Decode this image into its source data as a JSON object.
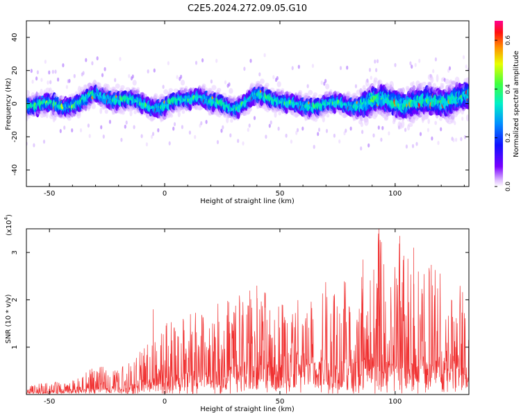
{
  "title": "C2E5.2024.272.09.05.G10",
  "colors": {
    "snr_line": "#f03030",
    "axis": "#000000"
  },
  "chart_data": [
    {
      "type": "heatmap",
      "xlabel": "Height of straight line (km)",
      "ylabel": "Frequency (Hz)",
      "xlim": [
        -60,
        132
      ],
      "ylim": [
        -50,
        50
      ],
      "xticks": [
        -50,
        0,
        50,
        100
      ],
      "yticks": [
        -40,
        -20,
        0,
        20,
        40
      ],
      "colorbar": {
        "label": "Normalized spectral amplitude",
        "range": [
          0,
          0.68
        ],
        "ticks": [
          0.0,
          0.2,
          0.4,
          0.6
        ],
        "colormap": "rainbow (purple-blue-cyan-green-yellow-red-magenta)"
      },
      "ridge": {
        "description": "strong signal band centred near 0 Hz, width roughly ±10 Hz, broader scatter above 85 km",
        "center_hz": [
          [
            -55,
            0
          ],
          [
            -45,
            -2
          ],
          [
            -35,
            2
          ],
          [
            -30,
            5
          ],
          [
            -20,
            3
          ],
          [
            -10,
            0
          ],
          [
            0,
            -2
          ],
          [
            10,
            3
          ],
          [
            15,
            6
          ],
          [
            20,
            0
          ],
          [
            30,
            -2
          ],
          [
            40,
            4
          ],
          [
            50,
            3
          ],
          [
            60,
            -3
          ],
          [
            70,
            1
          ],
          [
            80,
            -2
          ],
          [
            90,
            2
          ],
          [
            100,
            1
          ],
          [
            110,
            0
          ],
          [
            120,
            2
          ],
          [
            130,
            3
          ]
        ]
      }
    },
    {
      "type": "line",
      "xlabel": "Height of straight line (km)",
      "ylabel": "SNR (10 * v/v)",
      "y_multiplier": "(x10",
      "y_multiplier_exp": "4",
      "xlim": [
        -60,
        132
      ],
      "ylim": [
        0,
        3.5
      ],
      "xticks": [
        -50,
        0,
        50,
        100
      ],
      "yticks": [
        1,
        2,
        3
      ],
      "envelope": [
        [
          -60,
          0.2
        ],
        [
          -50,
          0.25
        ],
        [
          -40,
          0.3
        ],
        [
          -30,
          0.6
        ],
        [
          -20,
          0.55
        ],
        [
          -10,
          1.0
        ],
        [
          0,
          1.5
        ],
        [
          10,
          1.7
        ],
        [
          20,
          1.85
        ],
        [
          30,
          2.1
        ],
        [
          40,
          2.3
        ],
        [
          50,
          2.05
        ],
        [
          60,
          2.2
        ],
        [
          70,
          2.4
        ],
        [
          80,
          2.5
        ],
        [
          85,
          2.8
        ],
        [
          90,
          2.6
        ],
        [
          93,
          3.5
        ],
        [
          97,
          2.5
        ],
        [
          102,
          3.35
        ],
        [
          110,
          2.8
        ],
        [
          120,
          2.7
        ],
        [
          128,
          2.4
        ],
        [
          132,
          1.9
        ]
      ],
      "peaks": [
        [
          93,
          3.5
        ],
        [
          102,
          3.35
        ],
        [
          108,
          3.1
        ],
        [
          86,
          2.85
        ],
        [
          40,
          2.3
        ],
        [
          -5,
          1.8
        ]
      ]
    }
  ]
}
